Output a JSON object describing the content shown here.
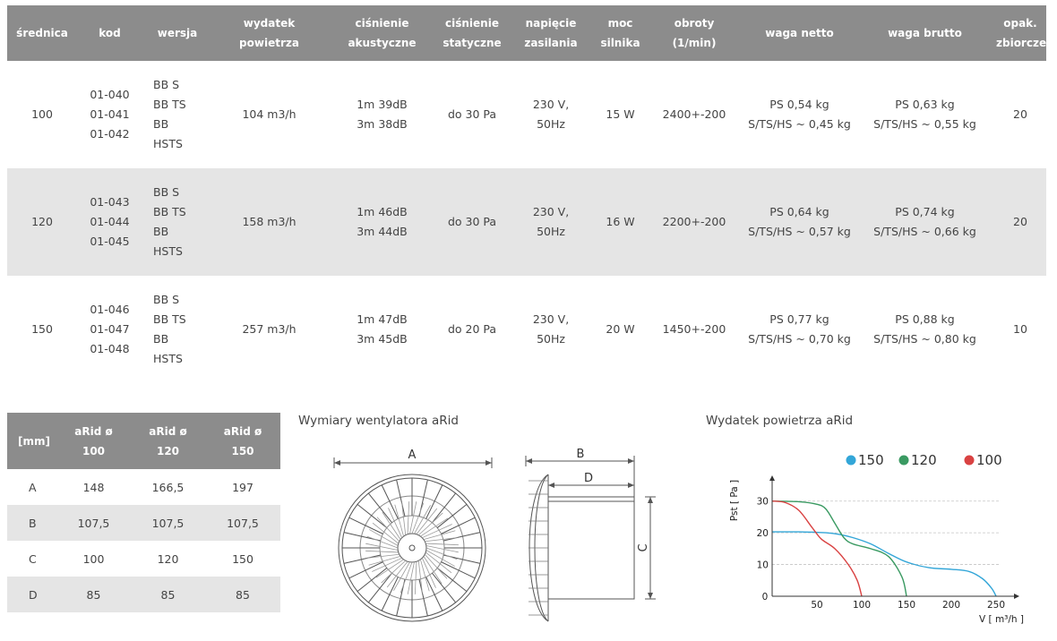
{
  "spec_table": {
    "headers": [
      "średnica",
      "kod",
      "wersja",
      "wydatek\npowietrza",
      "ciśnienie\nakustyczne",
      "ciśnienie\nstatyczne",
      "napięcie\nzasilania",
      "moc\nsilnika",
      "obroty\n(1/min)",
      "waga netto",
      "waga brutto",
      "opak.\nzbiorcze"
    ],
    "rows": [
      {
        "diameter": "100",
        "codes": "01-040\n01-041\n01-042",
        "versions": "BB S\nBB TS\nBB\nHSTS",
        "airflow": "104 m3/h",
        "acoustic": "1m 39dB\n3m 38dB",
        "static": "do 30 Pa",
        "voltage": "230 V,\n50Hz",
        "power": "15 W",
        "rpm": "2400+-200",
        "net": "PS 0,54 kg\nS/TS/HS ~ 0,45 kg",
        "gross": "PS 0,63 kg\nS/TS/HS ~ 0,55 kg",
        "pack": "20"
      },
      {
        "diameter": "120",
        "codes": "01-043\n01-044\n01-045",
        "versions": "BB S\nBB TS\nBB\nHSTS",
        "airflow": "158 m3/h",
        "acoustic": "1m 46dB\n3m 44dB",
        "static": "do 30 Pa",
        "voltage": "230 V,\n50Hz",
        "power": "16 W",
        "rpm": "2200+-200",
        "net": "PS 0,64 kg\nS/TS/HS ~ 0,57 kg",
        "gross": "PS 0,74 kg\nS/TS/HS ~ 0,66 kg",
        "pack": "20"
      },
      {
        "diameter": "150",
        "codes": "01-046\n01-047\n01-048",
        "versions": "BB S\nBB TS\nBB\nHSTS",
        "airflow": "257 m3/h",
        "acoustic": "1m 47dB\n3m 45dB",
        "static": "do 20 Pa",
        "voltage": "230 V,\n50Hz",
        "power": "20 W",
        "rpm": "1450+-200",
        "net": "PS 0,77 kg\nS/TS/HS ~ 0,70 kg",
        "gross": "PS 0,88 kg\nS/TS/HS ~ 0,80 kg",
        "pack": "10"
      }
    ]
  },
  "dims_table": {
    "headers": [
      "[mm]",
      "aRid ø\n100",
      "aRid ø\n120",
      "aRid ø\n150"
    ],
    "rows": [
      {
        "label": "A",
        "v100": "148",
        "v120": "166,5",
        "v150": "197"
      },
      {
        "label": "B",
        "v100": "107,5",
        "v120": "107,5",
        "v150": "107,5"
      },
      {
        "label": "C",
        "v100": "100",
        "v120": "120",
        "v150": "150"
      },
      {
        "label": "D",
        "v100": "85",
        "v120": "85",
        "v150": "85"
      }
    ]
  },
  "dims_caption": "Wymiary wentylatora aRid",
  "drawing_labels": {
    "a": "A",
    "b": "B",
    "c": "C",
    "d": "D"
  },
  "flow_caption": "Wydatek powietrza aRid",
  "chart_data": {
    "type": "line",
    "xlabel": "V [ m³/h ]",
    "ylabel": "Pst [ Pa ]",
    "x_ticks": [
      "0",
      "50",
      "100",
      "150",
      "200",
      "250"
    ],
    "y_ticks": [
      "10",
      "20",
      "30"
    ],
    "xlim": [
      0,
      270
    ],
    "ylim": [
      0,
      35
    ],
    "grid": true,
    "legend_position": "top",
    "series": [
      {
        "name": "150",
        "color": "#33a6d8",
        "x": [
          0,
          30,
          60,
          75,
          90,
          110,
          130,
          150,
          175,
          200,
          220,
          235,
          245,
          250
        ],
        "y": [
          20.3,
          20.3,
          20.0,
          19.5,
          18.5,
          16.5,
          13.5,
          10.8,
          9.0,
          8.5,
          7.8,
          5.5,
          2.5,
          0
        ]
      },
      {
        "name": "120",
        "color": "#3a9a62",
        "x": [
          0,
          30,
          50,
          60,
          70,
          80,
          90,
          110,
          130,
          145,
          150
        ],
        "y": [
          30.0,
          29.8,
          29.0,
          27.5,
          23.0,
          18.5,
          16.5,
          15.0,
          12.5,
          6.0,
          0
        ]
      },
      {
        "name": "100",
        "color": "#d94242",
        "x": [
          0,
          15,
          30,
          45,
          55,
          70,
          85,
          95,
          100
        ],
        "y": [
          30.0,
          29.5,
          27.0,
          21.5,
          18.0,
          15.0,
          10.0,
          5.0,
          0
        ]
      }
    ]
  },
  "colors": {
    "header_bg": "#8c8c8c",
    "row_shade": "#e5e5e5"
  }
}
